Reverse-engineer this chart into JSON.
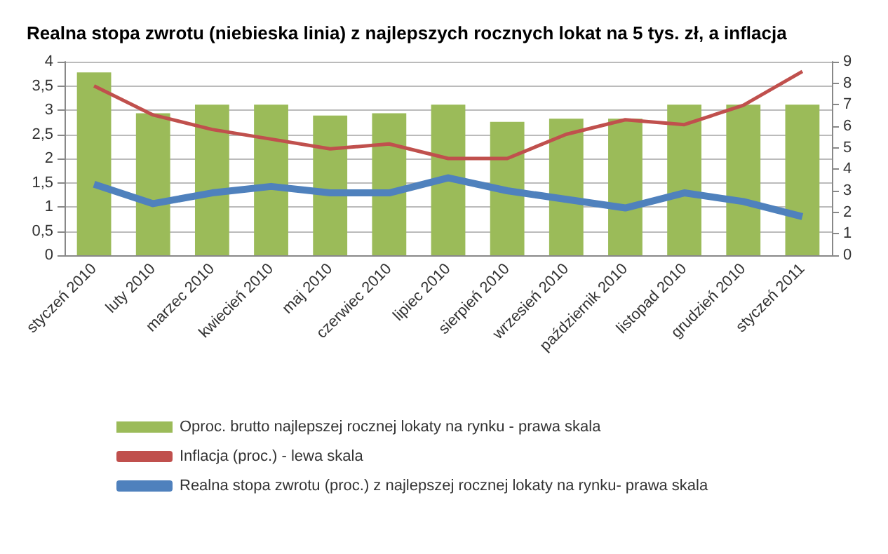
{
  "chart_data": {
    "type": "bar",
    "title": "Realna stopa zwrotu (niebieska linia) z najlepszych rocznych lokat na 5 tys. zł, a inflacja",
    "categories": [
      "styczeń 2010",
      "luty 2010",
      "marzec 2010",
      "kwiecień 2010",
      "maj 2010",
      "czerwiec 2010",
      "lipiec 2010",
      "sierpień 2010",
      "wrzesień 2010",
      "październik 2010",
      "listopad 2010",
      "grudzień 2010",
      "styczeń 2011"
    ],
    "series": [
      {
        "name": "Oproc. brutto najlepszej rocznej lokaty na rynku - prawa skala",
        "axis": "y2",
        "color": "#9bbb59",
        "values": [
          8.5,
          6.6,
          7.0,
          7.0,
          6.5,
          6.6,
          7.0,
          6.2,
          6.35,
          6.35,
          7.0,
          7.0,
          7.0
        ]
      },
      {
        "name": "Inflacja (proc.) - lewa skala",
        "type": "line",
        "color": "#c0504d",
        "values": [
          3.5,
          2.9,
          2.6,
          2.4,
          2.2,
          2.3,
          2.0,
          2.0,
          2.5,
          2.8,
          2.7,
          3.1,
          3.8
        ]
      },
      {
        "name": "Realna stopa zwrotu (proc.) z najlepszej rocznej lokaty na rynku- prawa skala",
        "type": "line",
        "axis": "y2",
        "color": "#4f81bd",
        "values": [
          3.3,
          2.4,
          2.9,
          3.2,
          2.9,
          2.9,
          3.6,
          3.0,
          2.6,
          2.2,
          2.9,
          2.5,
          1.8
        ]
      }
    ],
    "ylim": [
      0,
      4
    ],
    "yticks": [
      0,
      {
        "value": 0.5,
        "label": "0,5"
      },
      1,
      {
        "value": 1.5,
        "label": "1,5"
      },
      2,
      {
        "value": 2.5,
        "label": "2,5"
      },
      3,
      {
        "value": 3.5,
        "label": "3,5"
      },
      4
    ],
    "y2lim": [
      0,
      9
    ],
    "y2ticks": [
      0,
      1,
      2,
      3,
      4,
      5,
      6,
      7,
      8,
      9
    ],
    "grid": "y",
    "legend": "bottom",
    "marker": "none"
  }
}
